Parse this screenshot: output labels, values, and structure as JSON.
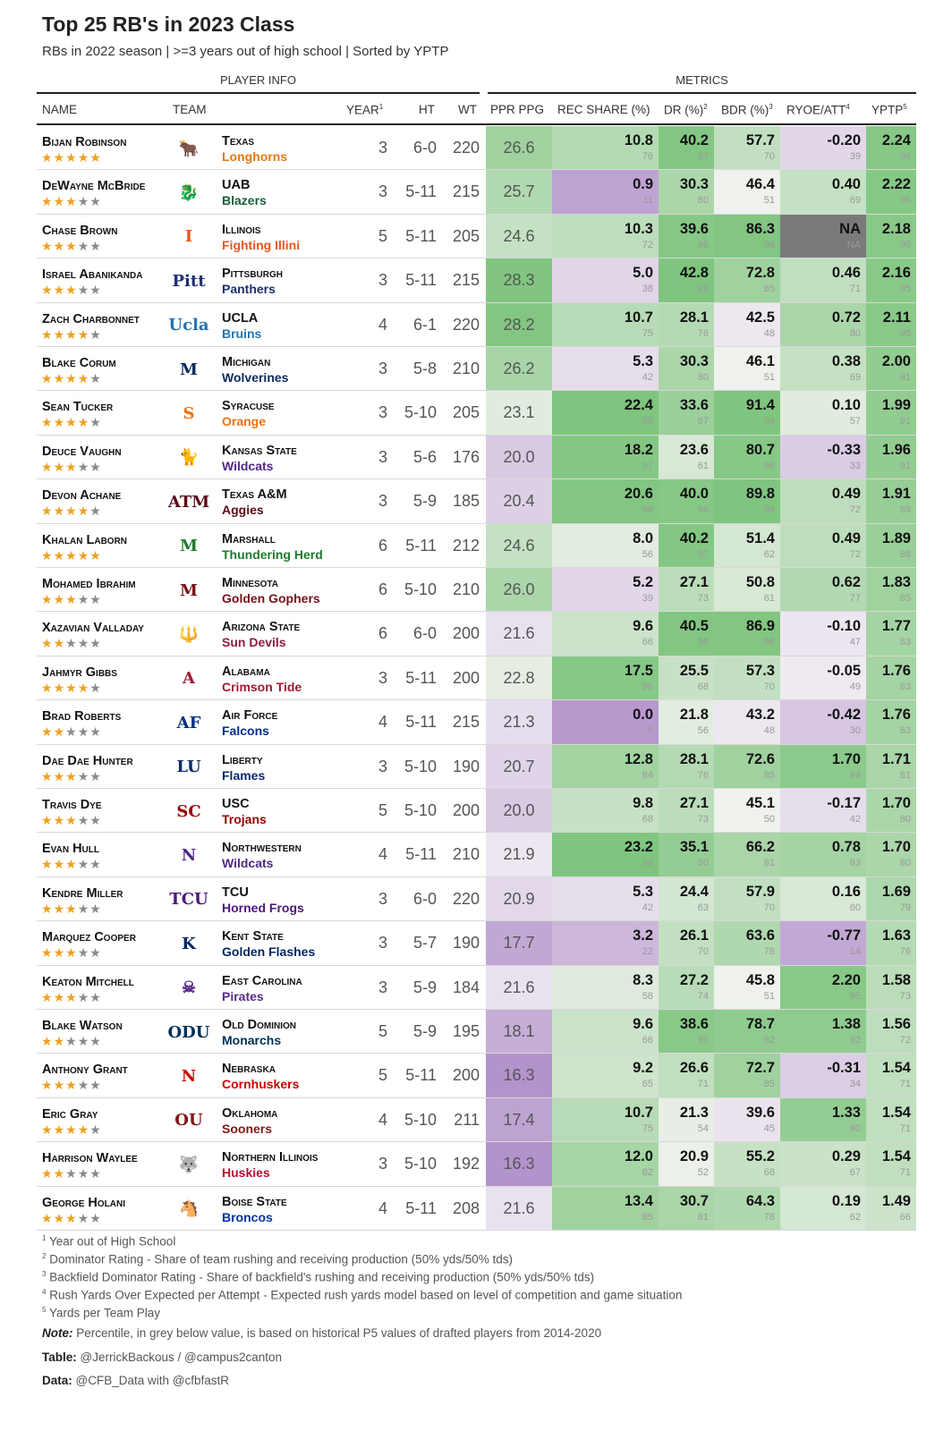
{
  "title": "Top 25 RB's in 2023 Class",
  "subtitle": "RBs in 2022 season | >=3 years out of high school | Sorted by YPTP",
  "groups": {
    "player_info": "PLAYER INFO",
    "metrics": "METRICS"
  },
  "headers": {
    "name": "NAME",
    "team": "TEAM",
    "year": "YEAR",
    "year_sup": "1",
    "ht": "HT",
    "wt": "WT",
    "ppr": "PPR PPG",
    "rec": "REC SHARE (%)",
    "dr": "DR (%)",
    "dr_sup": "2",
    "bdr": "BDR (%)",
    "bdr_sup": "3",
    "ryoe": "RYOE/ATT",
    "ryoe_sup": "4",
    "yptp": "YPTP",
    "yptp_sup": "5"
  },
  "colors": {
    "green_dark": "#7dc47d",
    "purple_dark": "#b08ec9",
    "na_gray": "#7a7a7a",
    "star": "#f0a020"
  },
  "players": [
    {
      "name": "Bijan Robinson",
      "stars": 5,
      "logo": "longhorn-logo",
      "logo_text": "🐂",
      "team": "Texas",
      "mascot": "Longhorns",
      "team_color": "#e07a10",
      "year": "3",
      "ht": "6-0",
      "wt": "220",
      "ppr": "26.6",
      "rec": [
        "10.8",
        "76"
      ],
      "dr": [
        "40.2",
        "97"
      ],
      "bdr": [
        "57.7",
        "70"
      ],
      "ryoe": [
        "-0.20",
        "39"
      ],
      "yptp": [
        "2.24",
        "96"
      ]
    },
    {
      "name": "DeWayne McBride",
      "stars": 3,
      "logo": "uab-dragon-logo",
      "logo_text": "🐉",
      "team": "UAB",
      "mascot": "Blazers",
      "team_color": "#1a5e3a",
      "year": "3",
      "ht": "5-11",
      "wt": "215",
      "ppr": "25.7",
      "rec": [
        "0.9",
        "11"
      ],
      "dr": [
        "30.3",
        "80"
      ],
      "bdr": [
        "46.4",
        "51"
      ],
      "ryoe": [
        "0.40",
        "69"
      ],
      "yptp": [
        "2.22",
        "96"
      ]
    },
    {
      "name": "Chase Brown",
      "stars": 3,
      "logo": "illinois-logo",
      "logo_text": "I",
      "team": "Illinois",
      "mascot": "Fighting Illini",
      "team_color": "#e8561e",
      "year": "5",
      "ht": "5-11",
      "wt": "205",
      "ppr": "24.6",
      "rec": [
        "10.3",
        "72"
      ],
      "dr": [
        "39.6",
        "96"
      ],
      "bdr": [
        "86.3",
        "98"
      ],
      "ryoe": [
        "NA",
        "NA"
      ],
      "yptp": [
        "2.18",
        "95"
      ]
    },
    {
      "name": "Israel Abanikanda",
      "stars": 3,
      "logo": "pitt-logo",
      "logo_text": "Pitt",
      "team": "Pittsburgh",
      "mascot": "Panthers",
      "team_color": "#1c2f6e",
      "year": "3",
      "ht": "5-11",
      "wt": "215",
      "ppr": "28.3",
      "rec": [
        "5.0",
        "38"
      ],
      "dr": [
        "42.8",
        "99"
      ],
      "bdr": [
        "72.8",
        "85"
      ],
      "ryoe": [
        "0.46",
        "71"
      ],
      "yptp": [
        "2.16",
        "95"
      ]
    },
    {
      "name": "Zach Charbonnet",
      "stars": 4,
      "logo": "ucla-logo",
      "logo_text": "Ucla",
      "team": "UCLA",
      "mascot": "Bruins",
      "team_color": "#2774ae",
      "year": "4",
      "ht": "6-1",
      "wt": "220",
      "ppr": "28.2",
      "rec": [
        "10.7",
        "75"
      ],
      "dr": [
        "28.1",
        "76"
      ],
      "bdr": [
        "42.5",
        "48"
      ],
      "ryoe": [
        "0.72",
        "80"
      ],
      "yptp": [
        "2.11",
        "95"
      ]
    },
    {
      "name": "Blake Corum",
      "stars": 4,
      "logo": "michigan-logo",
      "logo_text": "M",
      "team": "Michigan",
      "mascot": "Wolverines",
      "team_color": "#0b2a5c",
      "year": "3",
      "ht": "5-8",
      "wt": "210",
      "ppr": "26.2",
      "rec": [
        "5.3",
        "42"
      ],
      "dr": [
        "30.3",
        "80"
      ],
      "bdr": [
        "46.1",
        "51"
      ],
      "ryoe": [
        "0.38",
        "69"
      ],
      "yptp": [
        "2.00",
        "91"
      ]
    },
    {
      "name": "Sean Tucker",
      "stars": 4,
      "logo": "syracuse-logo",
      "logo_text": "S",
      "team": "Syracuse",
      "mascot": "Orange",
      "team_color": "#f07010",
      "year": "3",
      "ht": "5-10",
      "wt": "205",
      "ppr": "23.1",
      "rec": [
        "22.4",
        "99"
      ],
      "dr": [
        "33.6",
        "87"
      ],
      "bdr": [
        "91.4",
        "99"
      ],
      "ryoe": [
        "0.10",
        "57"
      ],
      "yptp": [
        "1.99",
        "91"
      ]
    },
    {
      "name": "Deuce Vaughn",
      "stars": 3,
      "logo": "kansas-state-logo",
      "logo_text": "🐈",
      "team": "Kansas State",
      "mascot": "Wildcats",
      "team_color": "#512888",
      "year": "3",
      "ht": "5-6",
      "wt": "176",
      "ppr": "20.0",
      "rec": [
        "18.2",
        "97"
      ],
      "dr": [
        "23.6",
        "61"
      ],
      "bdr": [
        "80.7",
        "96"
      ],
      "ryoe": [
        "-0.33",
        "33"
      ],
      "yptp": [
        "1.96",
        "91"
      ]
    },
    {
      "name": "Devon Achane",
      "stars": 4,
      "logo": "texas-am-logo",
      "logo_text": "ATM",
      "team": "Texas A&M",
      "mascot": "Aggies",
      "team_color": "#5c0a18",
      "year": "3",
      "ht": "5-9",
      "wt": "185",
      "ppr": "20.4",
      "rec": [
        "20.6",
        "98"
      ],
      "dr": [
        "40.0",
        "96"
      ],
      "bdr": [
        "89.8",
        "99"
      ],
      "ryoe": [
        "0.49",
        "72"
      ],
      "yptp": [
        "1.91",
        "89"
      ]
    },
    {
      "name": "Khalan Laborn",
      "stars": 5,
      "logo": "marshall-logo",
      "logo_text": "M",
      "team": "Marshall",
      "mascot": "Thundering Herd",
      "team_color": "#1f7a2e",
      "year": "6",
      "ht": "5-11",
      "wt": "212",
      "ppr": "24.6",
      "rec": [
        "8.0",
        "56"
      ],
      "dr": [
        "40.2",
        "97"
      ],
      "bdr": [
        "51.4",
        "62"
      ],
      "ryoe": [
        "0.49",
        "72"
      ],
      "yptp": [
        "1.89",
        "88"
      ]
    },
    {
      "name": "Mohamed Ibrahim",
      "stars": 3,
      "logo": "minnesota-logo",
      "logo_text": "M",
      "team": "Minnesota",
      "mascot": "Golden Gophers",
      "team_color": "#7a1019",
      "year": "6",
      "ht": "5-10",
      "wt": "210",
      "ppr": "26.0",
      "rec": [
        "5.2",
        "39"
      ],
      "dr": [
        "27.1",
        "73"
      ],
      "bdr": [
        "50.8",
        "61"
      ],
      "ryoe": [
        "0.62",
        "77"
      ],
      "yptp": [
        "1.83",
        "85"
      ]
    },
    {
      "name": "Xazavian Valladay",
      "stars": 2,
      "logo": "arizona-state-logo",
      "logo_text": "🔱",
      "team": "Arizona State",
      "mascot": "Sun Devils",
      "team_color": "#8c1d40",
      "year": "6",
      "ht": "6-0",
      "wt": "200",
      "ppr": "21.6",
      "rec": [
        "9.6",
        "66"
      ],
      "dr": [
        "40.5",
        "98"
      ],
      "bdr": [
        "86.9",
        "98"
      ],
      "ryoe": [
        "-0.10",
        "47"
      ],
      "yptp": [
        "1.77",
        "83"
      ]
    },
    {
      "name": "Jahmyr Gibbs",
      "stars": 4,
      "logo": "alabama-logo",
      "logo_text": "A",
      "team": "Alabama",
      "mascot": "Crimson Tide",
      "team_color": "#9e1b32",
      "year": "3",
      "ht": "5-11",
      "wt": "200",
      "ppr": "22.8",
      "rec": [
        "17.5",
        "96"
      ],
      "dr": [
        "25.5",
        "68"
      ],
      "bdr": [
        "57.3",
        "70"
      ],
      "ryoe": [
        "-0.05",
        "49"
      ],
      "yptp": [
        "1.76",
        "83"
      ]
    },
    {
      "name": "Brad Roberts",
      "stars": 2,
      "logo": "air-force-logo",
      "logo_text": "AF",
      "team": "Air Force",
      "mascot": "Falcons",
      "team_color": "#003087",
      "year": "4",
      "ht": "5-11",
      "wt": "215",
      "ppr": "21.3",
      "rec": [
        "0.0",
        "6"
      ],
      "dr": [
        "21.8",
        "56"
      ],
      "bdr": [
        "43.2",
        "48"
      ],
      "ryoe": [
        "-0.42",
        "30"
      ],
      "yptp": [
        "1.76",
        "83"
      ]
    },
    {
      "name": "Dae Dae Hunter",
      "stars": 3,
      "logo": "liberty-logo",
      "logo_text": "LU",
      "team": "Liberty",
      "mascot": "Flames",
      "team_color": "#0a2a6b",
      "year": "3",
      "ht": "5-10",
      "wt": "190",
      "ppr": "20.7",
      "rec": [
        "12.8",
        "84"
      ],
      "dr": [
        "28.1",
        "76"
      ],
      "bdr": [
        "72.6",
        "85"
      ],
      "ryoe": [
        "1.70",
        "94"
      ],
      "yptp": [
        "1.71",
        "81"
      ]
    },
    {
      "name": "Travis Dye",
      "stars": 3,
      "logo": "usc-logo",
      "logo_text": "SC",
      "team": "USC",
      "mascot": "Trojans",
      "team_color": "#990000",
      "year": "5",
      "ht": "5-10",
      "wt": "200",
      "ppr": "20.0",
      "rec": [
        "9.8",
        "68"
      ],
      "dr": [
        "27.1",
        "73"
      ],
      "bdr": [
        "45.1",
        "50"
      ],
      "ryoe": [
        "-0.17",
        "42"
      ],
      "yptp": [
        "1.70",
        "80"
      ]
    },
    {
      "name": "Evan Hull",
      "stars": 3,
      "logo": "northwestern-logo",
      "logo_text": "N",
      "team": "Northwestern",
      "mascot": "Wildcats",
      "team_color": "#4e2a84",
      "year": "4",
      "ht": "5-11",
      "wt": "210",
      "ppr": "21.9",
      "rec": [
        "23.2",
        "99"
      ],
      "dr": [
        "35.1",
        "90"
      ],
      "bdr": [
        "66.2",
        "81"
      ],
      "ryoe": [
        "0.78",
        "83"
      ],
      "yptp": [
        "1.70",
        "80"
      ]
    },
    {
      "name": "Kendre Miller",
      "stars": 3,
      "logo": "tcu-logo",
      "logo_text": "TCU",
      "team": "TCU",
      "mascot": "Horned Frogs",
      "team_color": "#4d1979",
      "year": "3",
      "ht": "6-0",
      "wt": "220",
      "ppr": "20.9",
      "rec": [
        "5.3",
        "42"
      ],
      "dr": [
        "24.4",
        "63"
      ],
      "bdr": [
        "57.9",
        "70"
      ],
      "ryoe": [
        "0.16",
        "60"
      ],
      "yptp": [
        "1.69",
        "79"
      ]
    },
    {
      "name": "Marquez Cooper",
      "stars": 3,
      "logo": "kent-state-logo",
      "logo_text": "K",
      "team": "Kent State",
      "mascot": "Golden Flashes",
      "team_color": "#002664",
      "year": "3",
      "ht": "5-7",
      "wt": "190",
      "ppr": "17.7",
      "rec": [
        "3.2",
        "22"
      ],
      "dr": [
        "26.1",
        "70"
      ],
      "bdr": [
        "63.6",
        "78"
      ],
      "ryoe": [
        "-0.77",
        "14"
      ],
      "yptp": [
        "1.63",
        "76"
      ]
    },
    {
      "name": "Keaton Mitchell",
      "stars": 3,
      "logo": "east-carolina-logo",
      "logo_text": "☠",
      "team": "East Carolina",
      "mascot": "Pirates",
      "team_color": "#592a8a",
      "year": "3",
      "ht": "5-9",
      "wt": "184",
      "ppr": "21.6",
      "rec": [
        "8.3",
        "58"
      ],
      "dr": [
        "27.2",
        "74"
      ],
      "bdr": [
        "45.8",
        "51"
      ],
      "ryoe": [
        "2.20",
        "95"
      ],
      "yptp": [
        "1.58",
        "73"
      ]
    },
    {
      "name": "Blake Watson",
      "stars": 2,
      "logo": "old-dominion-logo",
      "logo_text": "ODU",
      "team": "Old Dominion",
      "mascot": "Monarchs",
      "team_color": "#003057",
      "year": "5",
      "ht": "5-9",
      "wt": "195",
      "ppr": "18.1",
      "rec": [
        "9.6",
        "66"
      ],
      "dr": [
        "38.6",
        "95"
      ],
      "bdr": [
        "78.7",
        "92"
      ],
      "ryoe": [
        "1.38",
        "92"
      ],
      "yptp": [
        "1.56",
        "72"
      ]
    },
    {
      "name": "Anthony Grant",
      "stars": 3,
      "logo": "nebraska-logo",
      "logo_text": "N",
      "team": "Nebraska",
      "mascot": "Cornhuskers",
      "team_color": "#d00000",
      "year": "5",
      "ht": "5-11",
      "wt": "200",
      "ppr": "16.3",
      "rec": [
        "9.2",
        "65"
      ],
      "dr": [
        "26.6",
        "71"
      ],
      "bdr": [
        "72.7",
        "85"
      ],
      "ryoe": [
        "-0.31",
        "34"
      ],
      "yptp": [
        "1.54",
        "71"
      ]
    },
    {
      "name": "Eric Gray",
      "stars": 4,
      "logo": "oklahoma-logo",
      "logo_text": "OU",
      "team": "Oklahoma",
      "mascot": "Sooners",
      "team_color": "#841617",
      "year": "4",
      "ht": "5-10",
      "wt": "211",
      "ppr": "17.4",
      "rec": [
        "10.7",
        "75"
      ],
      "dr": [
        "21.3",
        "54"
      ],
      "bdr": [
        "39.6",
        "45"
      ],
      "ryoe": [
        "1.33",
        "90"
      ],
      "yptp": [
        "1.54",
        "71"
      ]
    },
    {
      "name": "Harrison Waylee",
      "stars": 2,
      "logo": "northern-illinois-logo",
      "logo_text": "🐺",
      "team": "Northern Illinois",
      "mascot": "Huskies",
      "team_color": "#ba0c2f",
      "year": "3",
      "ht": "5-10",
      "wt": "192",
      "ppr": "16.3",
      "rec": [
        "12.0",
        "82"
      ],
      "dr": [
        "20.9",
        "52"
      ],
      "bdr": [
        "55.2",
        "68"
      ],
      "ryoe": [
        "0.29",
        "67"
      ],
      "yptp": [
        "1.54",
        "71"
      ]
    },
    {
      "name": "George Holani",
      "stars": 3,
      "logo": "boise-state-logo",
      "logo_text": "🐴",
      "team": "Boise State",
      "mascot": "Broncos",
      "team_color": "#0033a0",
      "year": "4",
      "ht": "5-11",
      "wt": "208",
      "ppr": "21.6",
      "rec": [
        "13.4",
        "85"
      ],
      "dr": [
        "30.7",
        "81"
      ],
      "bdr": [
        "64.3",
        "78"
      ],
      "ryoe": [
        "0.19",
        "62"
      ],
      "yptp": [
        "1.49",
        "66"
      ]
    }
  ],
  "footnotes": [
    {
      "sup": "1",
      "text": "Year out of High School"
    },
    {
      "sup": "2",
      "text": "Dominator Rating - Share of team rushing and receiving production (50% yds/50% tds)"
    },
    {
      "sup": "3",
      "text": "Backfield Dominator Rating - Share of backfield's rushing and receiving production (50% yds/50% tds)"
    },
    {
      "sup": "4",
      "text": "Rush Yards Over Expected per Attempt - Expected rush yards model based on level of competition and game situation"
    },
    {
      "sup": "5",
      "text": "Yards per Team Play"
    }
  ],
  "note": {
    "label": "Note:",
    "text": " Percentile, in grey below value, is based on historical P5 values of drafted players from 2014-2020"
  },
  "table_credit": {
    "label": "Table:",
    "text": " @JerrickBackous / @campus2canton"
  },
  "data_credit": {
    "label": "Data:",
    "text": " @CFB_Data with @cfbfastR"
  }
}
